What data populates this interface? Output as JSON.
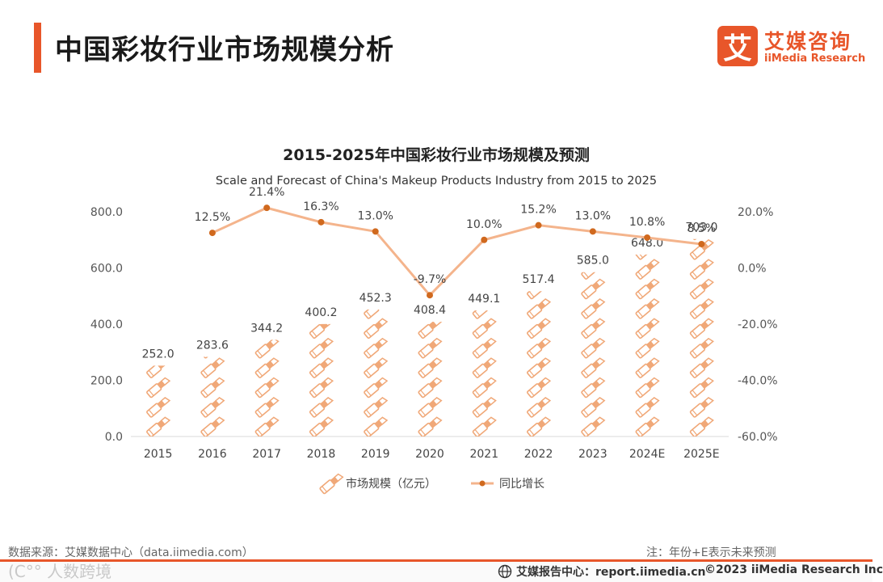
{
  "header": {
    "title": "中国彩妆行业市场规模分析",
    "logo_mark": "艾",
    "logo_cn": "艾媒咨询",
    "logo_en": "iiMedia Research"
  },
  "footer": {
    "source": "数据来源：艾媒数据中心（data.iimedia.com）",
    "note": "注：年份+E表示未来预测",
    "report": "艾媒报告中心：report.iimedia.cn",
    "copyright": "©2023  iiMedia Research  Inc",
    "watermark": "(C°° 人数跨境"
  },
  "colors": {
    "accent": "#e8562a",
    "bar": "#f0a878",
    "line": "#f4b48c",
    "marker": "#d0691e"
  },
  "chart_data": {
    "type": "bar+line",
    "title": "2015-2025年中国彩妆行业市场规模及预测",
    "subtitle": "Scale and Forecast of China's Makeup Products Industry from 2015 to 2025",
    "categories": [
      "2015",
      "2016",
      "2017",
      "2018",
      "2019",
      "2020",
      "2021",
      "2022",
      "2023",
      "2024E",
      "2025E"
    ],
    "series": [
      {
        "name": "市场规模（亿元）",
        "type": "bar",
        "axis": "left",
        "values": [
          252.0,
          283.6,
          344.2,
          400.2,
          452.3,
          408.4,
          449.1,
          517.4,
          585.0,
          648.0,
          703.0
        ],
        "labels": [
          "252.0",
          "283.6",
          "344.2",
          "400.2",
          "452.3",
          "408.4",
          "449.1",
          "517.4",
          "585.0",
          "648.0",
          "703.0"
        ]
      },
      {
        "name": "同比增长",
        "type": "line",
        "axis": "right",
        "values": [
          null,
          12.5,
          21.4,
          16.3,
          13.0,
          -9.7,
          10.0,
          15.2,
          13.0,
          10.8,
          8.5
        ],
        "labels": [
          "",
          "12.5%",
          "21.4%",
          "16.3%",
          "13.0%",
          "-9.7%",
          "10.0%",
          "15.2%",
          "13.0%",
          "10.8%",
          "8.5%"
        ]
      }
    ],
    "left_axis": {
      "min": 0,
      "max": 800,
      "ticks": [
        "0.0",
        "200.0",
        "400.0",
        "600.0",
        "800.0"
      ]
    },
    "right_axis": {
      "min": -60,
      "max": 20,
      "ticks": [
        "-60.0%",
        "-40.0%",
        "-20.0%",
        "0.0%",
        "20.0%"
      ]
    },
    "legend": {
      "position": "bottom",
      "items": [
        "市场规模（亿元）",
        "同比增长"
      ]
    }
  }
}
